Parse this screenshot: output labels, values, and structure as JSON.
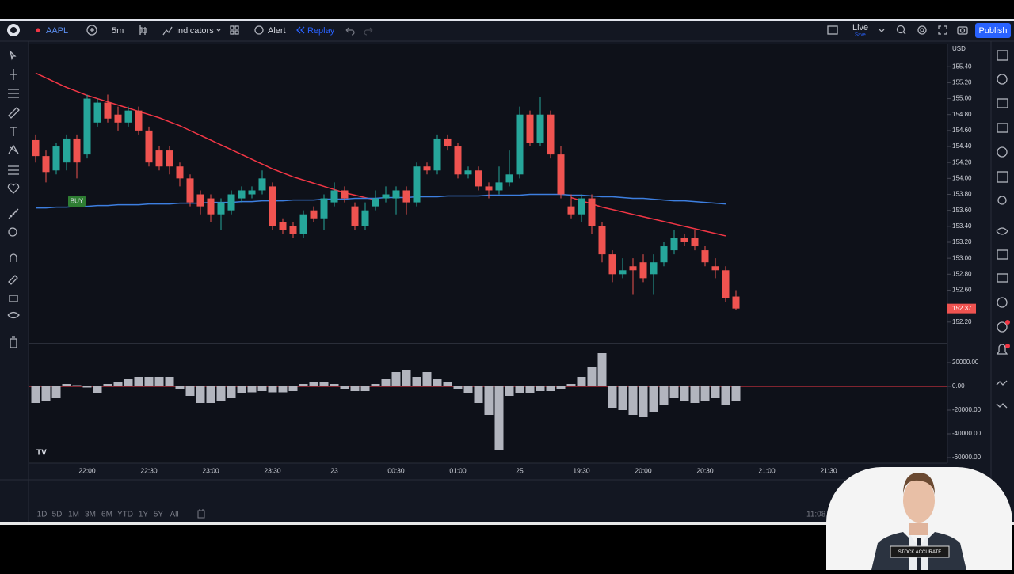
{
  "toolbar": {
    "symbol": "AAPL",
    "interval": "5m",
    "indicators": "Indicators",
    "alert": "Alert",
    "replay": "Replay",
    "live": "Live",
    "save": "Save",
    "publish": "Publish"
  },
  "chart_data": [
    {
      "type": "candlestick",
      "currency": "USD",
      "categories": [
        null,
        null,
        null,
        null,
        null,
        "22:00",
        null,
        null,
        null,
        null,
        null,
        "22:30",
        null,
        null,
        null,
        null,
        null,
        "23:00",
        null,
        null,
        null,
        null,
        null,
        "23:30",
        null,
        null,
        null,
        null,
        null,
        "23",
        null,
        null,
        null,
        null,
        null,
        "00:30",
        null,
        null,
        null,
        null,
        null,
        "01:00",
        null,
        null,
        null,
        null,
        null,
        "25",
        null,
        null,
        null,
        null,
        null,
        "19:30",
        null,
        null,
        null,
        null,
        null,
        "20:00",
        null,
        null,
        null,
        null,
        null,
        "20:30",
        null,
        null,
        null,
        null,
        null,
        "21:00",
        null,
        null,
        null,
        null,
        null,
        "21:30"
      ],
      "open": [
        154.48,
        154.28,
        154.1,
        154.2,
        154.5,
        154.3,
        154.7,
        154.95,
        154.8,
        154.7,
        154.85,
        154.6,
        154.35,
        154.35,
        154.15,
        154.0,
        153.8,
        153.75,
        153.55,
        153.6,
        153.75,
        153.8,
        153.85,
        153.9,
        153.45,
        153.4,
        153.3,
        153.6,
        153.5,
        153.7,
        153.85,
        153.65,
        153.4,
        153.65,
        153.75,
        153.75,
        153.85,
        153.7,
        154.15,
        154.1,
        154.5,
        154.4,
        154.05,
        154.1,
        153.9,
        153.85,
        153.95,
        154.05,
        154.8,
        154.45,
        154.8,
        154.3,
        153.65,
        153.55,
        153.75,
        153.4,
        153.05,
        152.8,
        152.9,
        152.95,
        152.8,
        152.95,
        153.1,
        153.25,
        153.25,
        153.1,
        152.9,
        152.85,
        152.52,
        null,
        null,
        null,
        null,
        null,
        null,
        null,
        null,
        null
      ],
      "high": [
        154.55,
        154.35,
        154.45,
        154.55,
        154.55,
        155.05,
        155.0,
        155.05,
        154.9,
        154.9,
        154.9,
        154.65,
        154.4,
        154.4,
        154.2,
        154.05,
        153.85,
        153.8,
        153.75,
        153.85,
        153.9,
        153.9,
        154.1,
        153.95,
        153.5,
        153.45,
        153.6,
        153.65,
        153.8,
        153.95,
        153.9,
        153.7,
        153.7,
        153.85,
        153.9,
        153.9,
        153.9,
        154.2,
        154.2,
        154.55,
        154.55,
        154.45,
        154.15,
        154.15,
        153.95,
        154.15,
        154.35,
        154.9,
        154.85,
        155.02,
        154.85,
        154.4,
        153.8,
        153.8,
        153.8,
        153.45,
        153.1,
        153.0,
        153.0,
        153.05,
        153.05,
        153.2,
        153.35,
        153.3,
        153.35,
        153.15,
        153.0,
        152.9,
        152.6,
        null,
        null,
        null,
        null,
        null,
        null,
        null,
        null,
        null
      ],
      "low": [
        154.2,
        153.95,
        154.05,
        154.1,
        154.0,
        154.25,
        154.65,
        154.7,
        154.6,
        154.65,
        154.55,
        154.15,
        154.1,
        154.05,
        153.9,
        153.65,
        153.55,
        153.45,
        153.35,
        153.55,
        153.7,
        153.75,
        153.8,
        153.35,
        153.3,
        153.25,
        153.25,
        153.45,
        153.35,
        153.65,
        153.7,
        153.35,
        153.35,
        153.6,
        153.7,
        153.55,
        153.55,
        153.65,
        154.05,
        154.05,
        154.35,
        154.0,
        154.0,
        153.85,
        153.75,
        153.8,
        153.9,
        154.0,
        154.4,
        154.4,
        154.25,
        153.75,
        153.5,
        153.45,
        153.3,
        152.95,
        152.7,
        152.75,
        152.55,
        152.7,
        152.55,
        152.9,
        153.05,
        153.15,
        153.1,
        152.9,
        152.75,
        152.45,
        152.35,
        null,
        null,
        null,
        null,
        null,
        null,
        null,
        null,
        null
      ],
      "close": [
        154.28,
        154.08,
        154.4,
        154.5,
        154.2,
        155.0,
        154.95,
        154.75,
        154.7,
        154.85,
        154.6,
        154.2,
        154.15,
        154.15,
        154.0,
        153.7,
        153.65,
        153.55,
        153.7,
        153.8,
        153.85,
        153.85,
        154.0,
        153.4,
        153.35,
        153.3,
        153.55,
        153.5,
        153.75,
        153.85,
        153.75,
        153.4,
        153.6,
        153.75,
        153.8,
        153.85,
        153.7,
        154.15,
        154.1,
        154.5,
        154.4,
        154.05,
        154.1,
        153.9,
        153.85,
        153.95,
        154.05,
        154.8,
        154.45,
        154.8,
        154.3,
        153.8,
        153.55,
        153.75,
        153.4,
        153.05,
        152.8,
        152.85,
        152.85,
        152.75,
        152.95,
        153.15,
        153.25,
        153.2,
        153.15,
        152.95,
        152.85,
        152.5,
        152.37,
        null,
        null,
        null,
        null,
        null,
        null,
        null,
        null,
        null
      ],
      "up_color": "#26a69a",
      "down_color": "#ef5350",
      "lines": [
        {
          "color": "#f23645",
          "values": [
            155.32,
            155.26,
            155.2,
            155.14,
            155.09,
            155.04,
            155.0,
            154.96,
            154.92,
            154.88,
            154.84,
            154.8,
            154.76,
            154.71,
            154.66,
            154.6,
            154.54,
            154.48,
            154.42,
            154.36,
            154.3,
            154.24,
            154.18,
            154.12,
            154.07,
            154.02,
            153.98,
            153.94,
            153.9,
            153.86,
            153.82,
            153.79,
            153.76,
            153.73,
            null,
            null,
            null,
            null,
            null,
            null,
            null,
            null,
            null,
            null,
            null,
            null,
            null,
            null,
            null,
            null,
            null,
            null,
            153.76,
            153.72,
            153.68,
            153.64,
            153.61,
            153.58,
            153.55,
            153.52,
            153.49,
            153.46,
            153.43,
            153.4,
            153.37,
            153.34,
            153.31,
            153.28,
            null,
            null,
            null,
            null,
            null,
            null,
            null,
            null,
            null,
            null
          ]
        },
        {
          "color": "#3d7fe0",
          "values": [
            153.63,
            153.63,
            153.64,
            153.64,
            153.65,
            153.65,
            153.66,
            153.66,
            153.67,
            153.67,
            153.67,
            153.68,
            153.68,
            153.68,
            153.69,
            153.69,
            153.69,
            153.7,
            153.7,
            153.7,
            153.71,
            153.71,
            153.72,
            153.72,
            153.72,
            153.73,
            153.73,
            153.73,
            153.74,
            153.74,
            153.74,
            153.75,
            153.75,
            153.75,
            153.76,
            153.76,
            153.76,
            153.77,
            153.77,
            153.77,
            153.78,
            153.78,
            153.78,
            153.78,
            153.79,
            153.79,
            153.79,
            153.79,
            153.8,
            153.8,
            153.8,
            153.8,
            153.79,
            153.79,
            153.78,
            153.77,
            153.77,
            153.76,
            153.75,
            153.75,
            153.74,
            153.73,
            153.72,
            153.72,
            153.71,
            153.7,
            153.69,
            153.68,
            null,
            null,
            null,
            null,
            null,
            null,
            null,
            null,
            null,
            null
          ]
        }
      ],
      "annotation": "BUY",
      "last_price": {
        "value": 152.37,
        "label": "152.37"
      },
      "ylim": [
        151.95,
        155.68
      ],
      "yticks": [
        {
          "value": 155.4,
          "label": "155.40"
        },
        {
          "value": 155.2,
          "label": "155.20"
        },
        {
          "value": 155.0,
          "label": "155.00"
        },
        {
          "value": 154.8,
          "label": "154.80"
        },
        {
          "value": 154.6,
          "label": "154.60"
        },
        {
          "value": 154.4,
          "label": "154.40"
        },
        {
          "value": 154.2,
          "label": "154.20"
        },
        {
          "value": 154.0,
          "label": "154.00"
        },
        {
          "value": 153.8,
          "label": "153.80"
        },
        {
          "value": 153.6,
          "label": "153.60"
        },
        {
          "value": 153.4,
          "label": "153.40"
        },
        {
          "value": 153.2,
          "label": "153.20"
        },
        {
          "value": 153.0,
          "label": "153.00"
        },
        {
          "value": 152.8,
          "label": "152.80"
        },
        {
          "value": 152.6,
          "label": "152.60"
        },
        {
          "value": 152.2,
          "label": "152.20"
        }
      ]
    },
    {
      "type": "bar",
      "color": "#b2b5be",
      "baseline_color": "#f23645",
      "values": [
        -14000,
        -12000,
        -10000,
        2000,
        1000,
        -1000,
        -6000,
        2000,
        4000,
        6000,
        8000,
        8000,
        8000,
        8000,
        -2000,
        -8000,
        -14000,
        -14000,
        -12000,
        -10000,
        -6000,
        -5000,
        -4000,
        -5000,
        -5000,
        -4000,
        2000,
        4000,
        4000,
        2000,
        -2000,
        -4000,
        -4000,
        2000,
        6000,
        12000,
        14000,
        8000,
        12000,
        6000,
        4000,
        -2000,
        -6000,
        -14000,
        -24000,
        -54000,
        -8000,
        -6000,
        -6000,
        -4000,
        -4000,
        -2000,
        2000,
        8000,
        16000,
        28000,
        -18000,
        -20000,
        -24000,
        -26000,
        -22000,
        -16000,
        -10000,
        -12000,
        -14000,
        -12000,
        -10000,
        -16000,
        -12000,
        null,
        null,
        null,
        null,
        null,
        null,
        null,
        null,
        null
      ],
      "ylim": [
        -65000,
        35000
      ],
      "yticks": [
        {
          "value": 20000,
          "label": "20000.00"
        },
        {
          "value": 0,
          "label": "0.00"
        },
        {
          "value": -20000,
          "label": "-20000.00"
        },
        {
          "value": -40000,
          "label": "-40000.00"
        },
        {
          "value": -60000,
          "label": "-60000.00"
        }
      ]
    }
  ],
  "timeframes": [
    "1D",
    "5D",
    "1M",
    "3M",
    "6M",
    "YTD",
    "1Y",
    "5Y",
    "All"
  ],
  "clock": "11:08",
  "webcam": {
    "caption": "STOCK ACCURATE"
  }
}
